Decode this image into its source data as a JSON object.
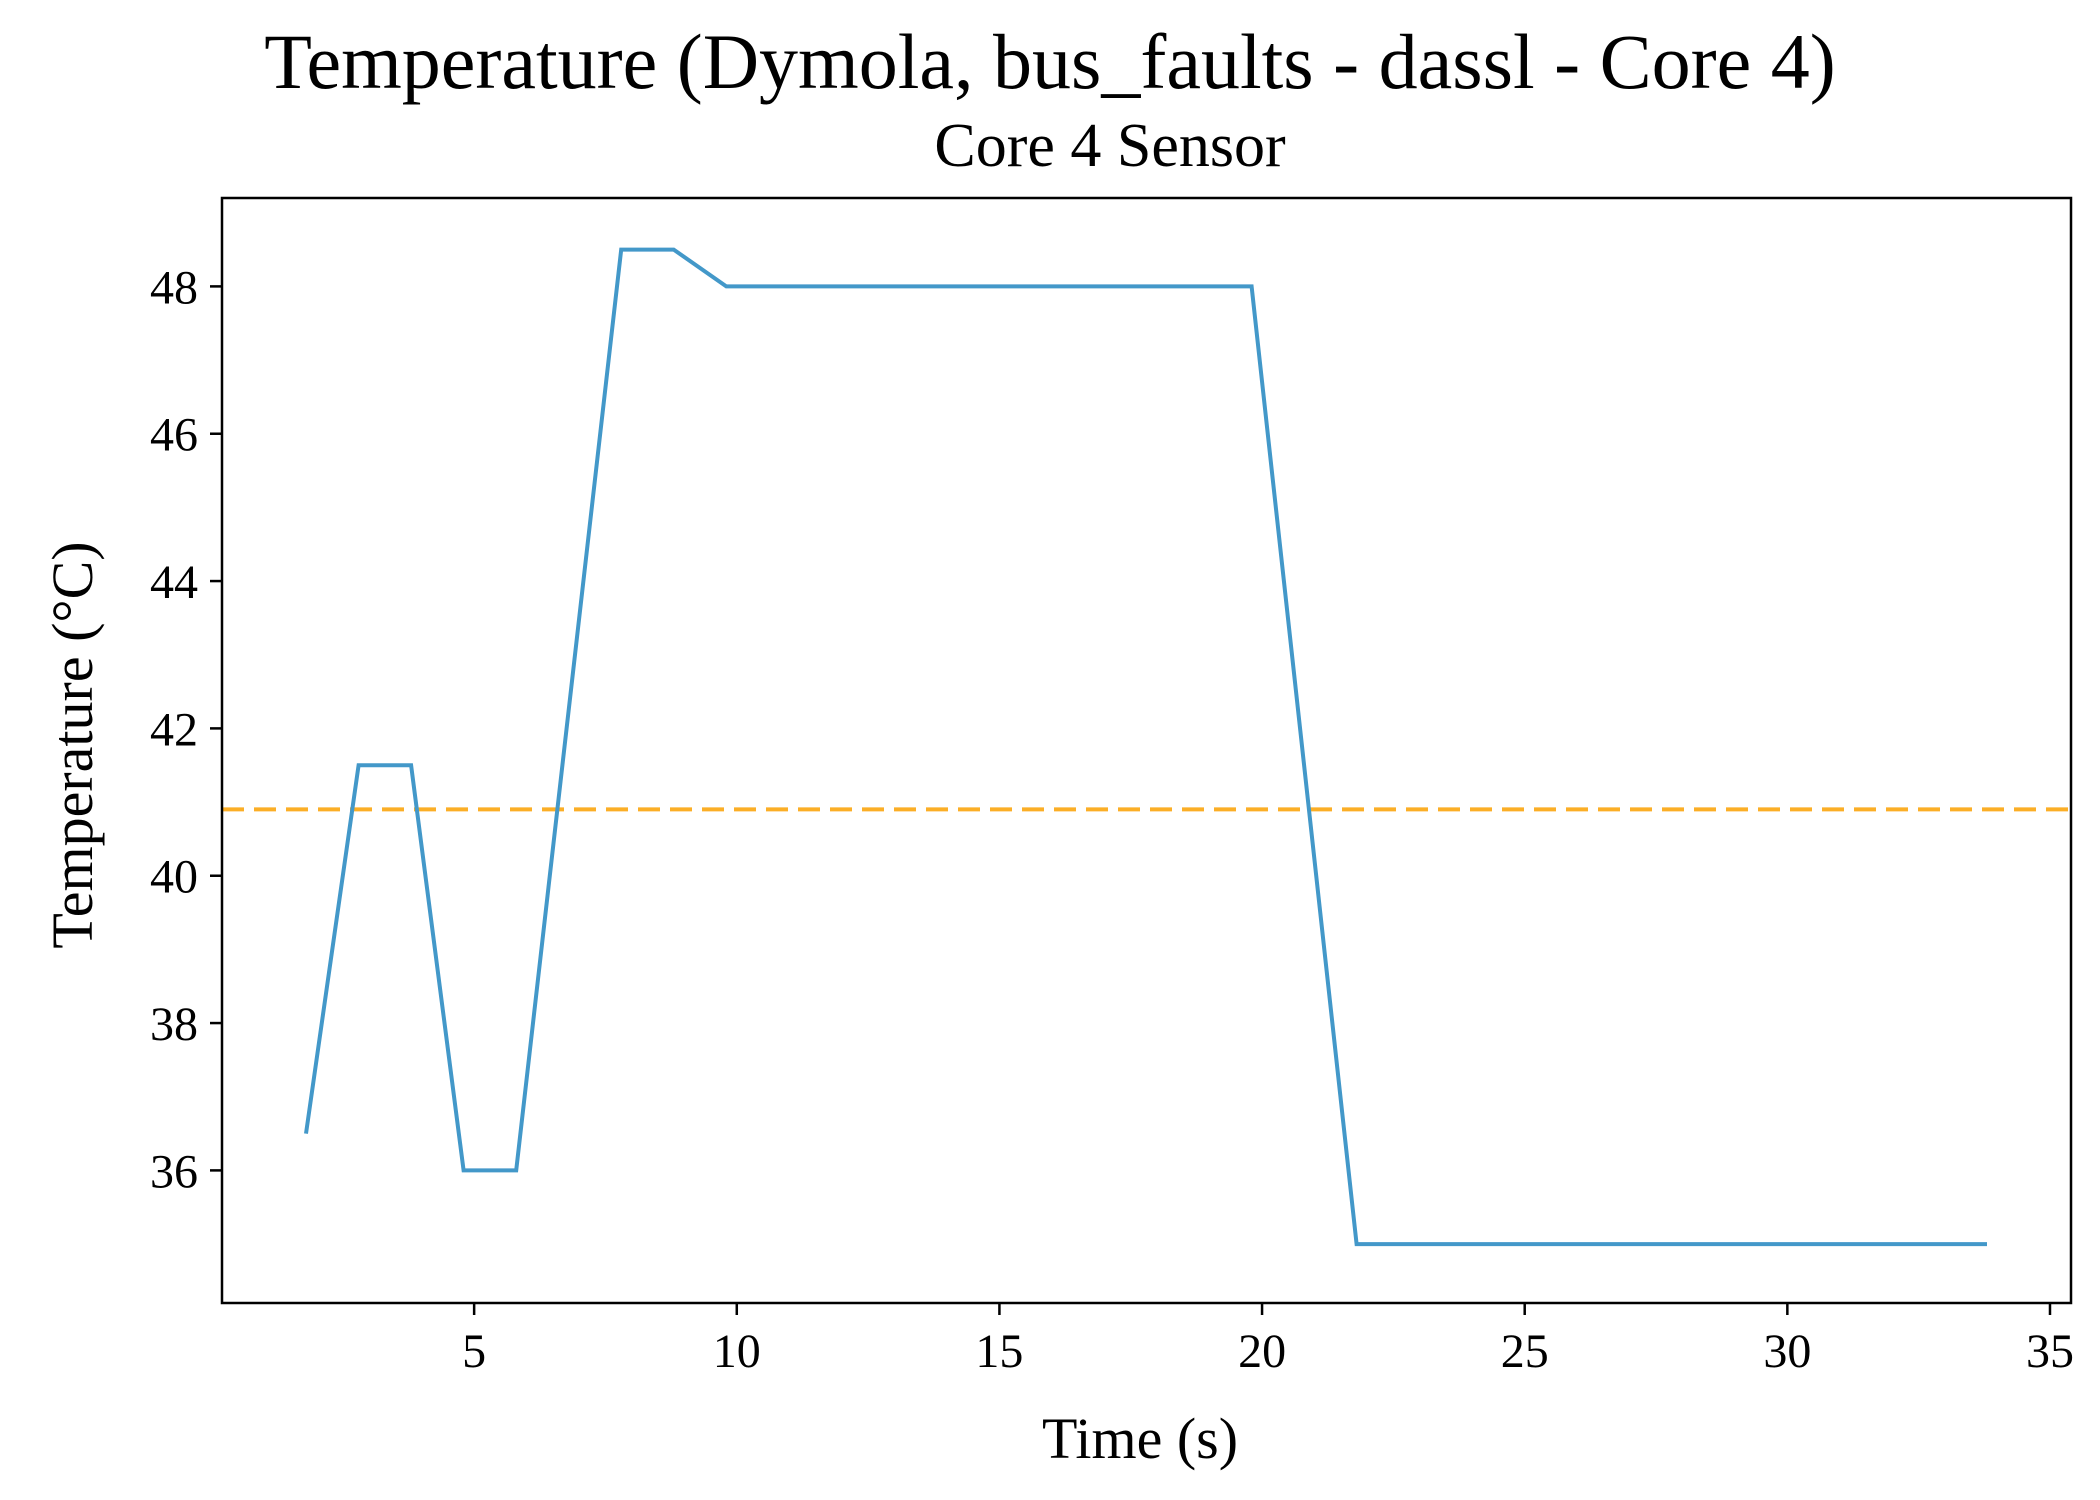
{
  "chart_data": {
    "type": "line",
    "title": "Temperature (Dymola, bus_faults - dassl - Core 4)",
    "subtitle": "Core 4 Sensor",
    "xlabel": "Time (s)",
    "ylabel": "Temperature (°C)",
    "xlim": [
      0.2,
      35.4
    ],
    "ylim": [
      34.2,
      49.2
    ],
    "xticks": [
      5,
      10,
      15,
      20,
      25,
      30,
      35
    ],
    "yticks": [
      36,
      38,
      40,
      42,
      44,
      46,
      48
    ],
    "grid": false,
    "legend": "none",
    "series": [
      {
        "color": "#4398c9",
        "style": "solid",
        "x": [
          1.8,
          2.8,
          3.8,
          4.8,
          5.8,
          7.8,
          8.8,
          9.8,
          19.8,
          21.8,
          33.8
        ],
        "y": [
          36.5,
          41.5,
          41.5,
          36.0,
          36.0,
          48.5,
          48.5,
          48.0,
          48.0,
          35.0,
          35.0
        ]
      }
    ],
    "reference_lines": [
      {
        "axis": "y",
        "value": 40.9,
        "color": "#fbae26",
        "style": "dashed"
      }
    ]
  }
}
